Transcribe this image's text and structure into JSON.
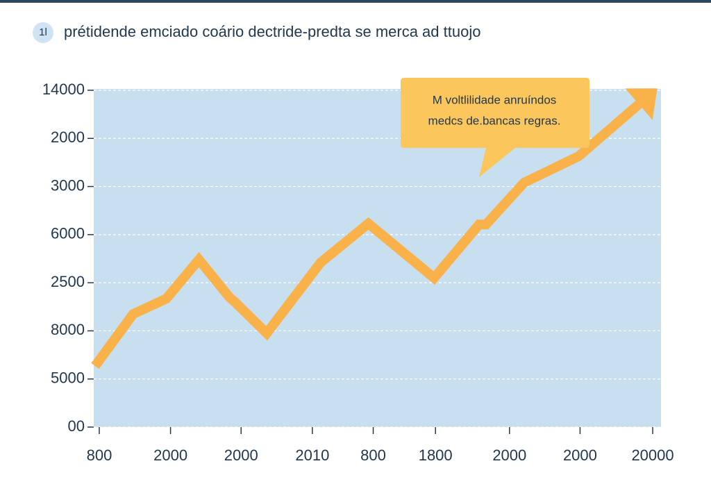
{
  "chart_data": {
    "type": "line",
    "badge": "1l",
    "title": "prétidende emciado coário dectride-predta se merca ad ttuojo",
    "annotation": [
      "M voltlilidade anruíndos",
      "medcs de.bancas regras."
    ],
    "x": [
      -0.06,
      0.49,
      0.97,
      1.44,
      1.88,
      1.96,
      2.42,
      3.2,
      3.89,
      4.84,
      5.49,
      5.59,
      6.14,
      6.93,
      7.8
    ],
    "values": [
      1.27,
      2.35,
      2.67,
      3.48,
      2.7,
      2.6,
      1.95,
      3.42,
      4.23,
      3.1,
      4.21,
      4.21,
      5.08,
      5.63,
      6.71
    ],
    "color": "#f9b24a",
    "xlim": [
      -0.08,
      8.12
    ],
    "ylim": [
      0,
      7
    ],
    "xticks": [
      {
        "value": 0,
        "label": "800"
      },
      {
        "value": 1.03,
        "label": "2000"
      },
      {
        "value": 2.05,
        "label": "2000"
      },
      {
        "value": 3.08,
        "label": "2010"
      },
      {
        "value": 3.96,
        "label": "800"
      },
      {
        "value": 4.86,
        "label": "1800"
      },
      {
        "value": 5.93,
        "label": "2000"
      },
      {
        "value": 6.95,
        "label": "2000"
      },
      {
        "value": 8,
        "label": "20000"
      }
    ],
    "yticks": [
      {
        "value": 0,
        "label": "00"
      },
      {
        "value": 1,
        "label": "5000"
      },
      {
        "value": 2,
        "label": "8000"
      },
      {
        "value": 3,
        "label": "2500"
      },
      {
        "value": 4,
        "label": "6000"
      },
      {
        "value": 5,
        "label": "3000"
      },
      {
        "value": 6,
        "label": "2000"
      },
      {
        "value": 7,
        "label": "14000"
      }
    ],
    "grid": true
  }
}
